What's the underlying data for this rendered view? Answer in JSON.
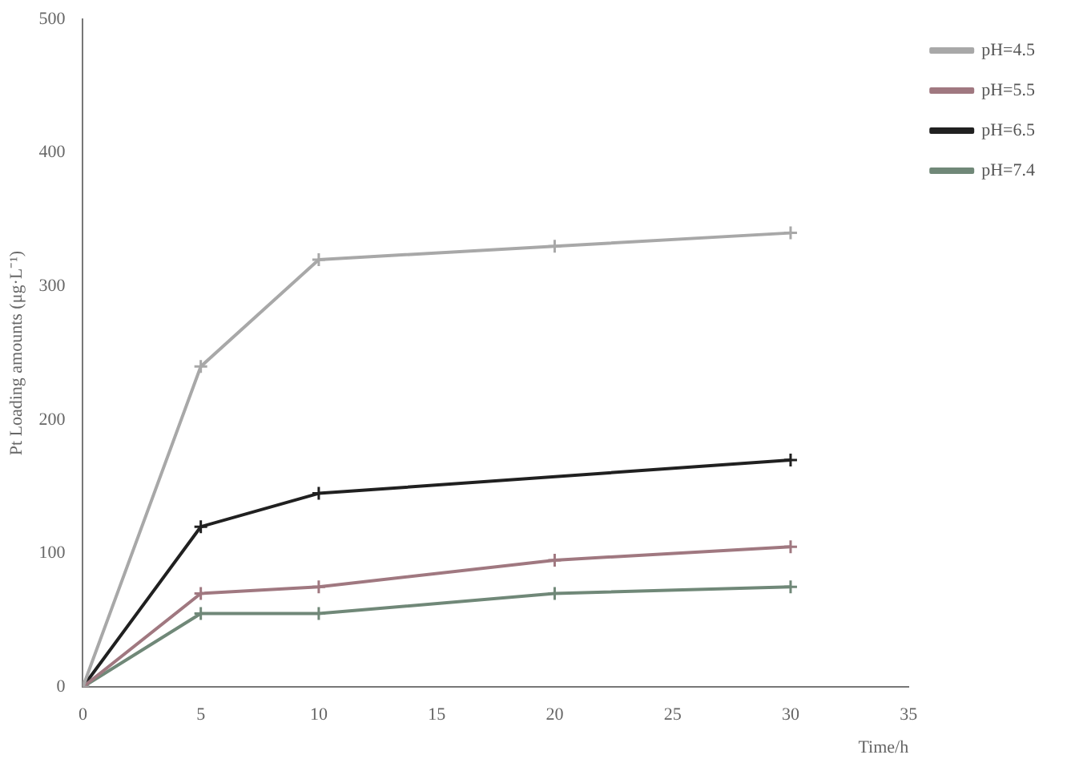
{
  "chart_data": {
    "type": "line",
    "xlabel": "Time/h",
    "ylabel": "Pt Loading amounts (μg·L⁻¹)",
    "xlim": [
      0,
      35
    ],
    "xticks": [
      0,
      5,
      10,
      15,
      20,
      25,
      30,
      35
    ],
    "ylim": [
      0,
      500
    ],
    "yticks": [
      0,
      100,
      200,
      300,
      400,
      500
    ],
    "legend": "right",
    "marker": "cross",
    "line_style": "solid",
    "grid": false,
    "series": [
      {
        "name": "pH=4.5",
        "color": "#a8a8a8",
        "x": [
          0,
          5,
          10,
          20,
          30
        ],
        "values": [
          0,
          240,
          320,
          330,
          340
        ]
      },
      {
        "name": "pH=5.5",
        "color": "#a07880",
        "x": [
          0,
          5,
          10,
          20,
          30
        ],
        "values": [
          0,
          70,
          75,
          95,
          105
        ]
      },
      {
        "name": "pH=6.5",
        "color": "#202020",
        "x": [
          0,
          5,
          10,
          30
        ],
        "values": [
          0,
          120,
          145,
          170
        ]
      },
      {
        "name": "pH=7.4",
        "color": "#708878",
        "x": [
          0,
          5,
          10,
          20,
          30
        ],
        "values": [
          0,
          55,
          55,
          70,
          75
        ]
      }
    ]
  }
}
